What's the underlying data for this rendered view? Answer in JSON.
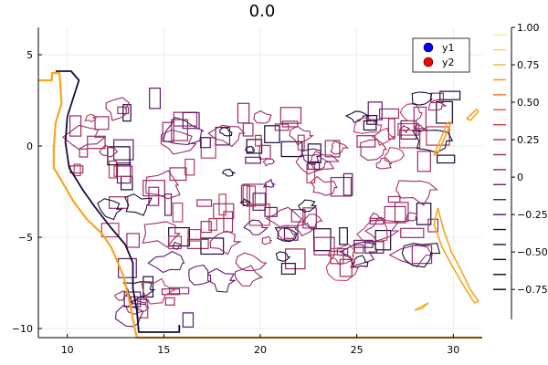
{
  "chart_data": {
    "type": "contour",
    "title": "0.0",
    "xlabel": "",
    "ylabel": "",
    "xlim": [
      8.5,
      31.5
    ],
    "ylim": [
      -10.5,
      6.5
    ],
    "x_ticks": [
      10,
      15,
      20,
      25,
      30
    ],
    "x_tick_labels": [
      "10",
      "15",
      "20",
      "25",
      "30"
    ],
    "y_ticks": [
      5,
      0,
      -5,
      -10
    ],
    "y_tick_labels": [
      "5",
      "0",
      "−5",
      "−10"
    ],
    "grid": true,
    "legend": {
      "placement": "top-right",
      "entries": [
        {
          "name": "y1",
          "color": "#0000ff",
          "marker": "circle"
        },
        {
          "name": "y2",
          "color": "#ff0000",
          "marker": "circle"
        }
      ]
    },
    "colorbar": {
      "range": [
        -0.95,
        1.0
      ],
      "ticks": [
        1.0,
        0.75,
        0.5,
        0.25,
        0,
        -0.25,
        -0.5,
        -0.75
      ],
      "tick_labels": [
        "1.00",
        "0.75",
        "0.50",
        "0.25",
        "0",
        "−0.25",
        "−0.50",
        "−0.75"
      ],
      "levels": [
        {
          "value": 0.95,
          "color": "#fcf06a"
        },
        {
          "value": 0.85,
          "color": "#fbd24a"
        },
        {
          "value": 0.75,
          "color": "#f9b233"
        },
        {
          "value": 0.65,
          "color": "#f69326"
        },
        {
          "value": 0.55,
          "color": "#ef7327"
        },
        {
          "value": 0.45,
          "color": "#e1562f"
        },
        {
          "value": 0.35,
          "color": "#cf3f3c"
        },
        {
          "value": 0.25,
          "color": "#b9324a"
        },
        {
          "value": 0.15,
          "color": "#a22b55"
        },
        {
          "value": 0.05,
          "color": "#8b255f"
        },
        {
          "value": -0.05,
          "color": "#731e66"
        },
        {
          "value": -0.15,
          "color": "#5d1768"
        },
        {
          "value": -0.25,
          "color": "#481164"
        },
        {
          "value": -0.35,
          "color": "#330c58"
        },
        {
          "value": -0.45,
          "color": "#200a45"
        },
        {
          "value": -0.55,
          "color": "#110730"
        },
        {
          "value": -0.65,
          "color": "#06041c"
        },
        {
          "value": -0.75,
          "color": "#01000c"
        }
      ]
    },
    "series": [
      {
        "name": "y1",
        "color": "#0000ff",
        "kind": "scatter",
        "points": []
      },
      {
        "name": "y2",
        "color": "#ff0000",
        "kind": "scatter",
        "points": []
      }
    ],
    "palette": {
      "dark": "#1a0b3a",
      "purple": "#5c1a6b",
      "magenta": "#9a2c67",
      "rose": "#b93b5b",
      "orange": "#f8a51e",
      "yellow": "#fcd14a"
    }
  }
}
